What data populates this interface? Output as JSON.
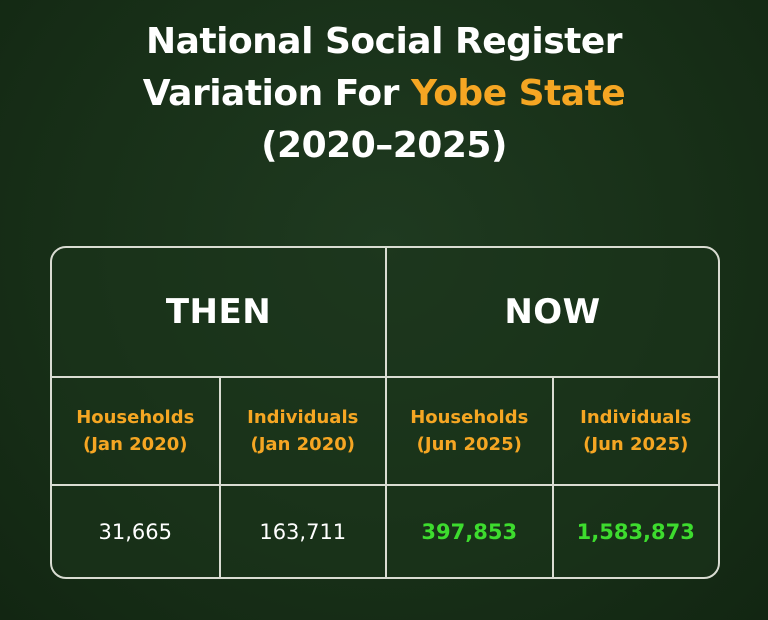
{
  "title": {
    "line1": "National Social Register",
    "line2_prefix": "Variation For ",
    "line2_highlight": "Yobe State",
    "line3": "(2020–2025)"
  },
  "table": {
    "then_label": "THEN",
    "now_label": "NOW",
    "columns": [
      {
        "label": "Households",
        "period": "(Jan 2020)",
        "value": "31,665"
      },
      {
        "label": "Individuals",
        "period": "(Jan 2020)",
        "value": "163,711"
      },
      {
        "label": "Households",
        "period": "(Jun 2025)",
        "value": "397,853"
      },
      {
        "label": "Individuals",
        "period": "(Jun 2025)",
        "value": "1,583,873"
      }
    ]
  },
  "colors": {
    "accent": "#f5a623",
    "growth": "#3ddc2e",
    "background": "#183018",
    "border": "#d9dcd2"
  }
}
